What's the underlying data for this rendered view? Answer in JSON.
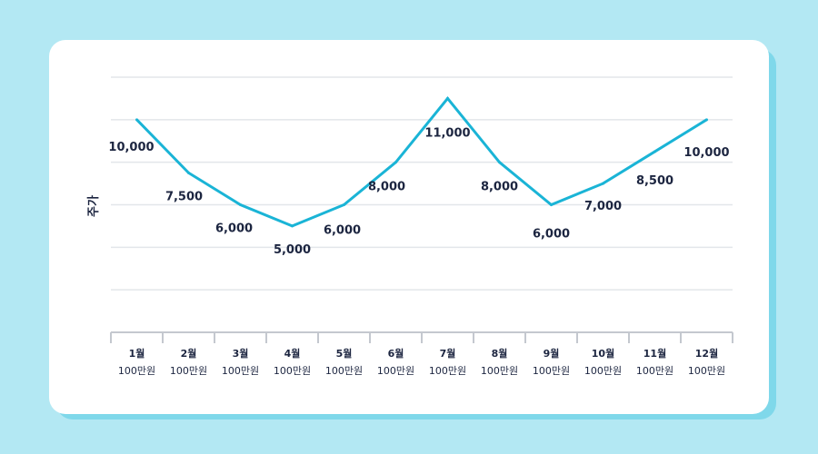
{
  "chart_data": {
    "type": "line",
    "ylabel": "주가",
    "categories": [
      "1월",
      "2월",
      "3월",
      "4월",
      "5월",
      "6월",
      "7월",
      "8월",
      "9월",
      "10월",
      "11월",
      "12월"
    ],
    "unit_label": "100만원",
    "values": [
      10000,
      7500,
      6000,
      5000,
      6000,
      8000,
      11000,
      8000,
      6000,
      7000,
      8500,
      10000
    ],
    "value_labels": [
      "10,000",
      "7,500",
      "6,000",
      "5,000",
      "6,000",
      "8,000",
      "11,000",
      "8,000",
      "6,000",
      "7,000",
      "8,500",
      "10,000"
    ],
    "ylim": [
      0,
      12000
    ],
    "grid": true,
    "line_color": "#1ab4d6"
  }
}
